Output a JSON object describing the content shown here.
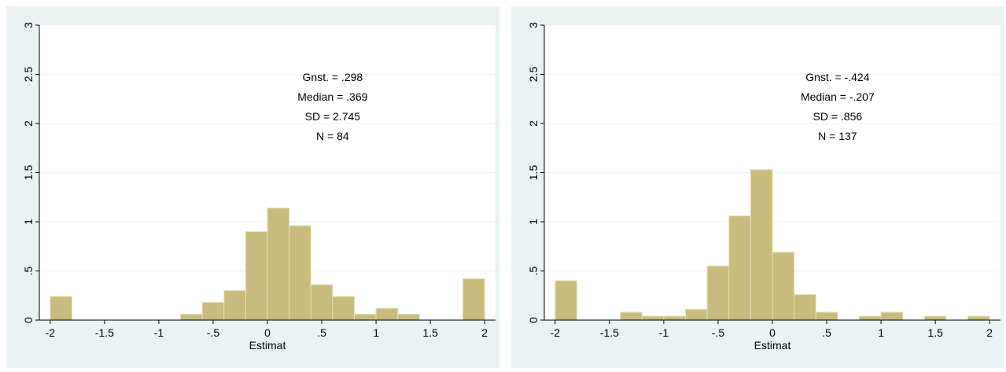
{
  "chart_data": [
    {
      "type": "bar",
      "xlabel": "Estimat",
      "ylabel": "",
      "xlim": [
        -2.1,
        2.1
      ],
      "ylim": [
        0,
        3
      ],
      "xticks": [
        "-2",
        "-1.5",
        "-1",
        "-.5",
        "0",
        ".5",
        "1",
        "1.5",
        "2"
      ],
      "yticks": [
        "0",
        ".5",
        "1",
        "1.5",
        "2",
        "2.5",
        "3"
      ],
      "bin_width": 0.2,
      "bin_starts": [
        -2.0,
        -0.8,
        -0.6,
        -0.4,
        -0.2,
        0.0,
        0.2,
        0.4,
        0.6,
        0.8,
        1.0,
        1.2,
        1.8
      ],
      "values": [
        0.24,
        0.06,
        0.18,
        0.3,
        0.9,
        1.14,
        0.96,
        0.36,
        0.24,
        0.06,
        0.12,
        0.06,
        0.42
      ],
      "stats": [
        "Gnst. = .298",
        "Median = .369",
        "SD = 2.745",
        "N = 84"
      ],
      "bar_color": "#c8bb7d",
      "bar_edge_color": "#e6dfbb",
      "bg_color": "#eaf2f3",
      "grid": true
    },
    {
      "type": "bar",
      "xlabel": "Estimat",
      "ylabel": "",
      "xlim": [
        -2.1,
        2.1
      ],
      "ylim": [
        0,
        3
      ],
      "xticks": [
        "-2",
        "-1.5",
        "-1",
        "-.5",
        "0",
        ".5",
        "1",
        "1.5",
        "2"
      ],
      "yticks": [
        "0",
        ".5",
        "1",
        "1.5",
        "2",
        "2.5",
        "3"
      ],
      "bin_width": 0.2,
      "bin_starts": [
        -2.0,
        -1.4,
        -1.2,
        -1.0,
        -0.8,
        -0.6,
        -0.4,
        -0.2,
        0.0,
        0.2,
        0.4,
        0.8,
        1.0,
        1.4,
        1.8
      ],
      "values": [
        0.4,
        0.08,
        0.04,
        0.04,
        0.11,
        0.55,
        1.06,
        1.53,
        0.69,
        0.26,
        0.08,
        0.04,
        0.08,
        0.04,
        0.04
      ],
      "stats": [
        "Gnst. = -.424",
        "Median = -.207",
        "SD = .856",
        "N = 137"
      ],
      "bar_color": "#c8bb7d",
      "bar_edge_color": "#e6dfbb",
      "bg_color": "#eaf2f3",
      "grid": true
    }
  ]
}
